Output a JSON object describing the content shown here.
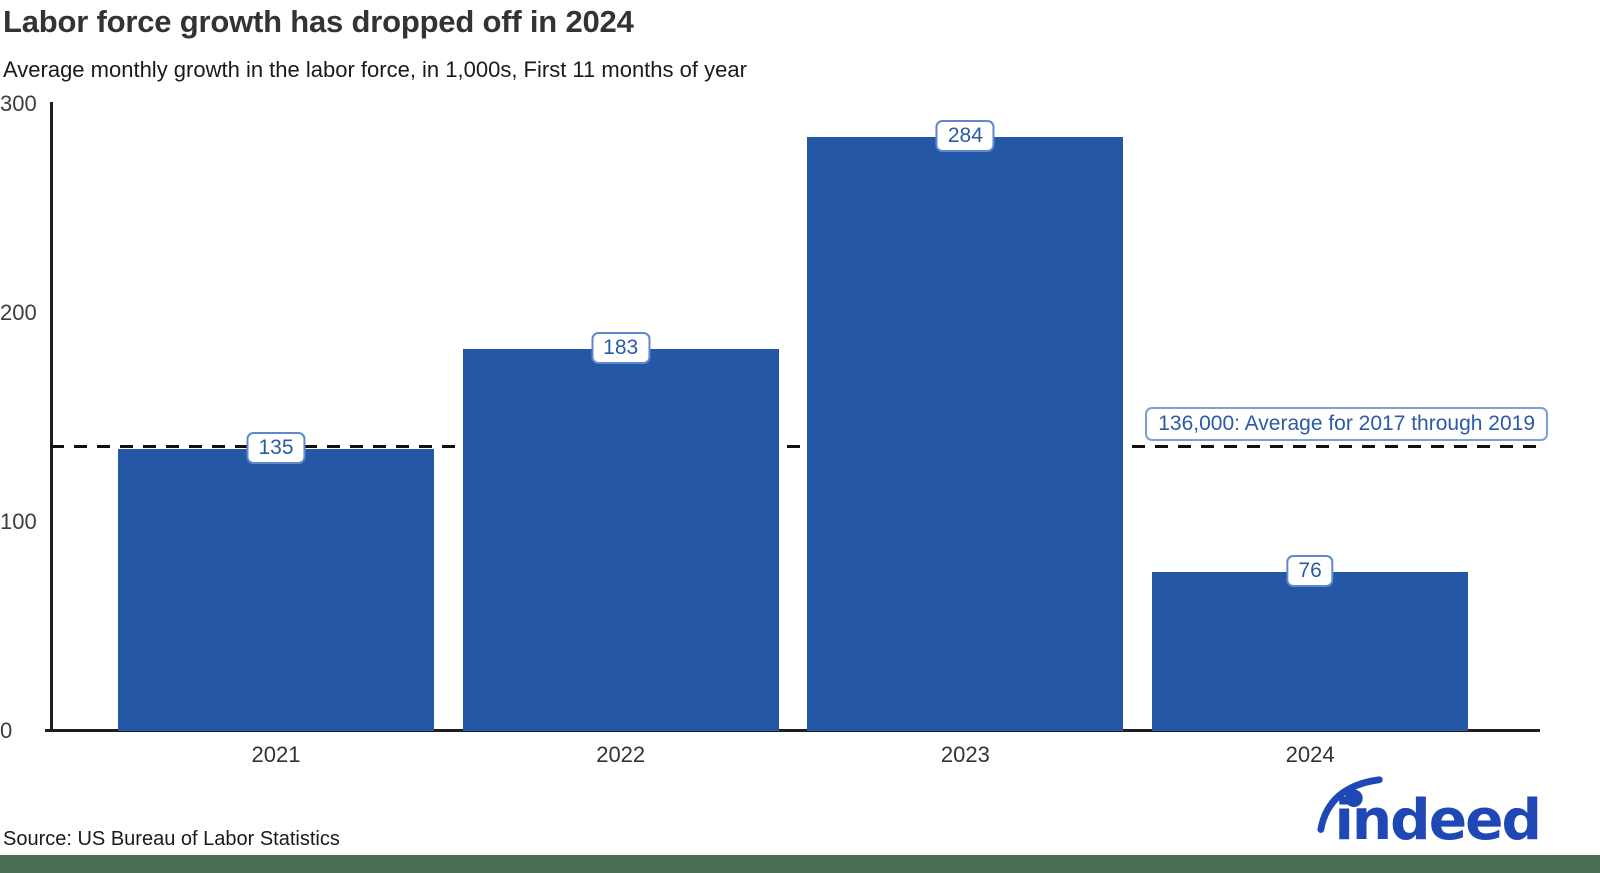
{
  "header": {
    "title": "Labor force growth has dropped off in 2024",
    "subtitle": "Average monthly growth in the labor force, in 1,000s, First 11 months of year"
  },
  "chart_data": {
    "type": "bar",
    "title": "Labor force growth has dropped off in 2024",
    "subtitle": "Average monthly growth in the labor force, in 1,000s, First 11 months of year",
    "categories": [
      "2021",
      "2022",
      "2023",
      "2024"
    ],
    "values": [
      135,
      183,
      284,
      76
    ],
    "value_labels": [
      "135",
      "183",
      "284",
      "76"
    ],
    "xlabel": "",
    "ylabel": "",
    "ylim": [
      0,
      300
    ],
    "yticks": [
      0,
      100,
      200,
      300
    ],
    "grid": false,
    "legend": false,
    "bar_color": "#2557a7",
    "reference_line": {
      "value": 136,
      "label": "136,000: Average for 2017 through 2019",
      "style": "dashed",
      "color": "#111111"
    }
  },
  "footer": {
    "source": "Source: US Bureau of Labor Statistics",
    "logo_text": "indeed",
    "logo_color": "#1f47b5",
    "band_color": "#4b6e55"
  }
}
